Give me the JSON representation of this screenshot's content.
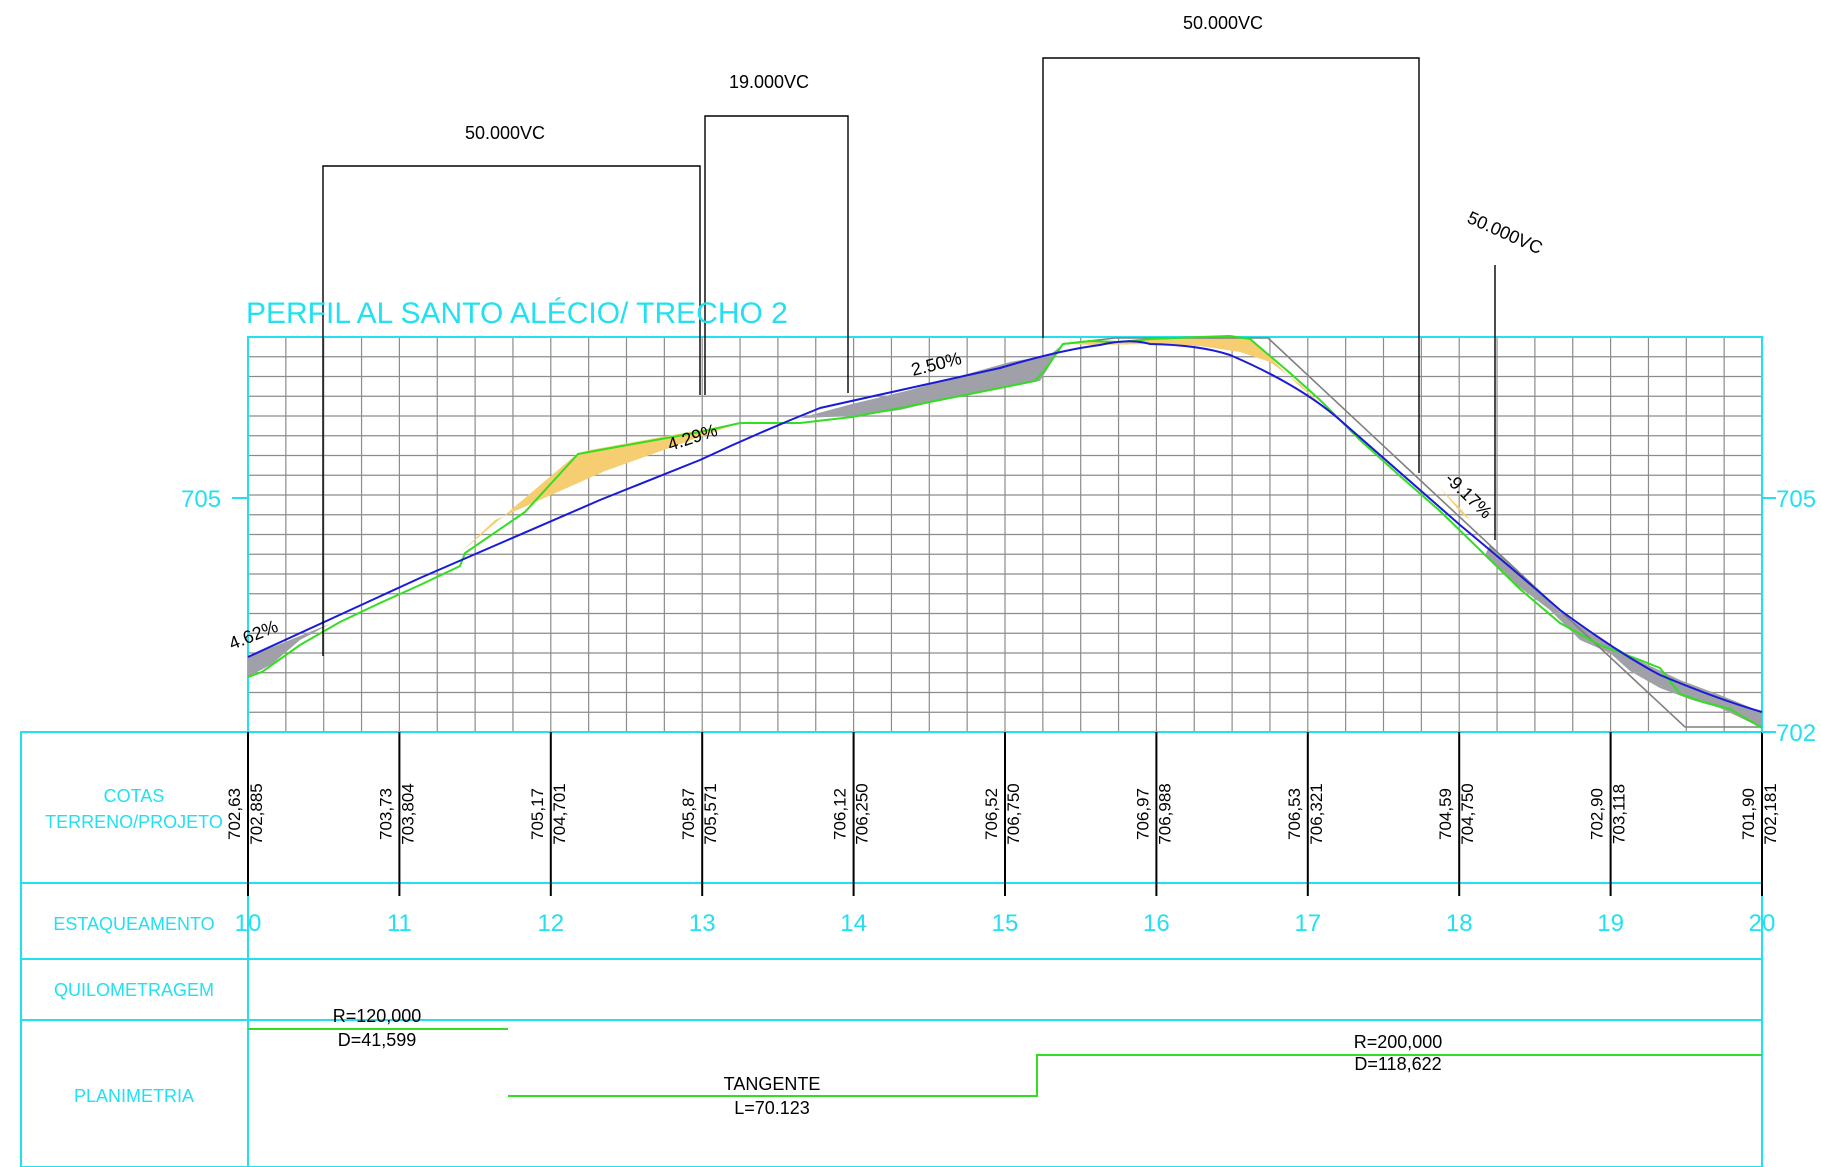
{
  "title": "PERFIL AL SANTO ALÉCIO/ TRECHO 2",
  "colors": {
    "cyan": "#22e0f0",
    "grid": "#8c8c8c",
    "terrain": "#33dd22",
    "project": "#1a1ad8",
    "cut_fill": "#f6cd70",
    "fill_fill": "#a0a0a8",
    "tangent": "#808080",
    "ink": "#000000"
  },
  "elevation_labels": {
    "left": "705",
    "right_top": "705",
    "right_bottom": "702"
  },
  "vertical_curves": [
    {
      "label": "50.000VC",
      "label_rotated": false
    },
    {
      "label": "19.000VC",
      "label_rotated": false
    },
    {
      "label": "50.000VC",
      "label_rotated": false
    },
    {
      "label": "50.000VC",
      "label_rotated": true
    }
  ],
  "grades": [
    "4.62%",
    "4.29%",
    "2.50%",
    "-9.17%"
  ],
  "row_labels": {
    "cotas": [
      "COTAS",
      "TERRENO/PROJETO"
    ],
    "estaqueamento": "ESTAQUEAMENTO",
    "quilometragem": "QUILOMETRAGEM",
    "planimetria": "PLANIMETRIA"
  },
  "stations": [
    {
      "station": "10",
      "terrain": "702,63",
      "project": "702,885"
    },
    {
      "station": "11",
      "terrain": "703,73",
      "project": "703,804"
    },
    {
      "station": "12",
      "terrain": "705,17",
      "project": "704,701"
    },
    {
      "station": "13",
      "terrain": "705,87",
      "project": "705,571"
    },
    {
      "station": "14",
      "terrain": "706,12",
      "project": "706,250"
    },
    {
      "station": "15",
      "terrain": "706,52",
      "project": "706,750"
    },
    {
      "station": "16",
      "terrain": "706,97",
      "project": "706,988"
    },
    {
      "station": "17",
      "terrain": "706,53",
      "project": "706,321"
    },
    {
      "station": "18",
      "terrain": "704,59",
      "project": "704,750"
    },
    {
      "station": "19",
      "terrain": "702,90",
      "project": "703,118"
    },
    {
      "station": "20",
      "terrain": "701,90",
      "project": "702,181"
    }
  ],
  "planimetria": [
    {
      "type": "curve",
      "radius": "R=120,000",
      "development": "D=41,599"
    },
    {
      "type": "tangent",
      "label": "TANGENTE",
      "length": "L=70.123"
    },
    {
      "type": "curve",
      "radius": "R=200,000",
      "development": "D=118,622"
    }
  ]
}
